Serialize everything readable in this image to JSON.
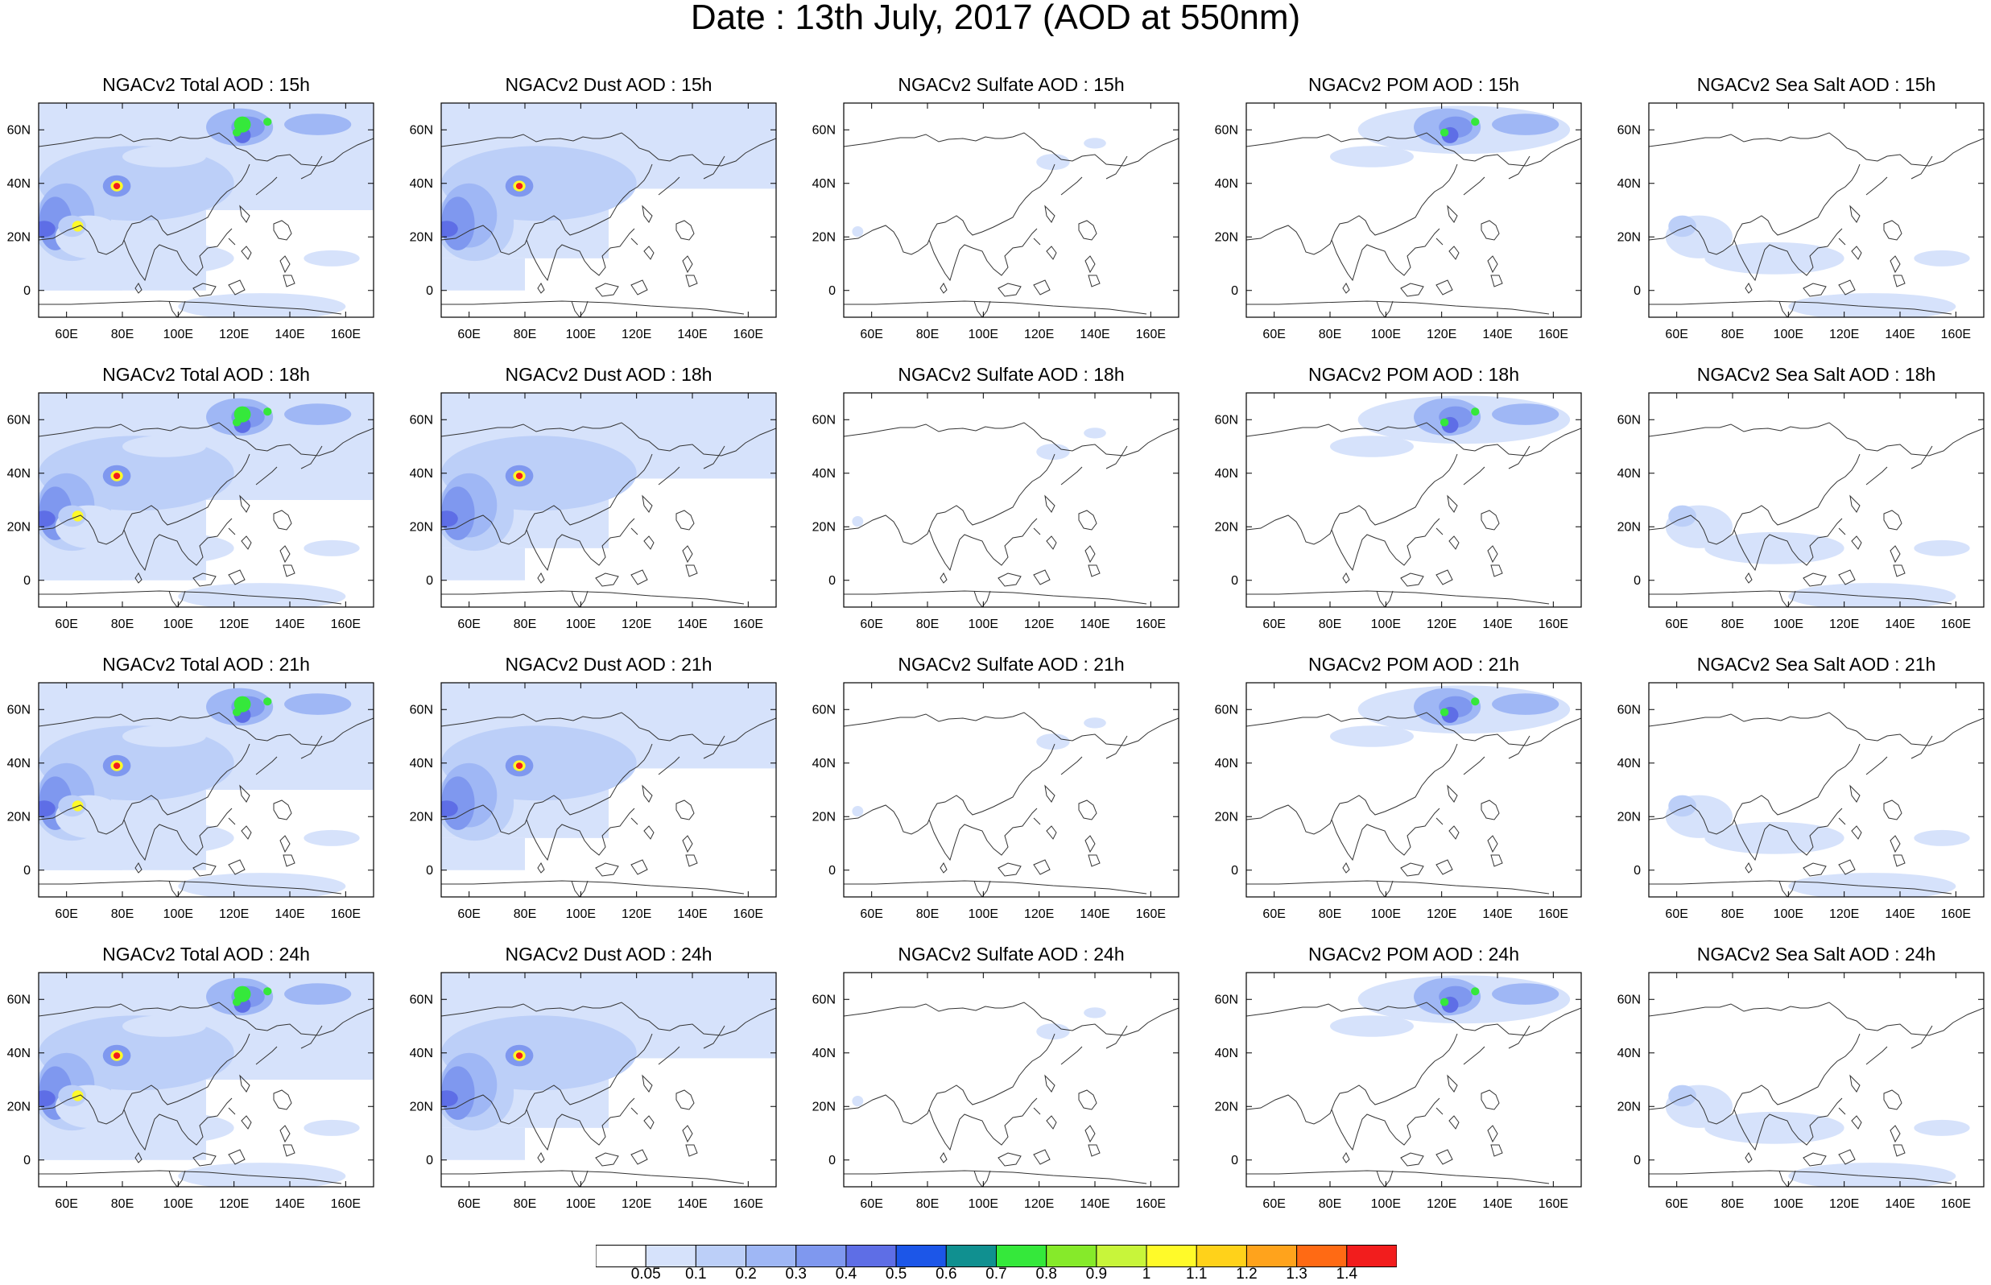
{
  "title": "Date : 13th July, 2017 (AOD at 550nm)",
  "axes": {
    "x_ticks": [
      "60E",
      "80E",
      "100E",
      "120E",
      "140E",
      "160E"
    ],
    "y_ticks": [
      "60N",
      "40N",
      "20N",
      "0"
    ],
    "lon_range": [
      50,
      170
    ],
    "lat_range": [
      -10,
      70
    ]
  },
  "panel_titles": [
    [
      "NGACv2 Total AOD : 15h",
      "NGACv2 Dust AOD : 15h",
      "NGACv2 Sulfate AOD : 15h",
      "NGACv2 POM AOD : 15h",
      "NGACv2 Sea Salt AOD : 15h"
    ],
    [
      "NGACv2 Total AOD : 18h",
      "NGACv2 Dust AOD : 18h",
      "NGACv2 Sulfate AOD : 18h",
      "NGACv2 POM AOD : 18h",
      "NGACv2 Sea Salt AOD : 18h"
    ],
    [
      "NGACv2 Total AOD : 21h",
      "NGACv2 Dust AOD : 21h",
      "NGACv2 Sulfate AOD : 21h",
      "NGACv2 POM AOD : 21h",
      "NGACv2 Sea Salt AOD : 21h"
    ],
    [
      "NGACv2 Total AOD : 24h",
      "NGACv2 Dust AOD : 24h",
      "NGACv2 Sulfate AOD : 24h",
      "NGACv2 POM AOD : 24h",
      "NGACv2 Sea Salt  AOD : 24h"
    ]
  ],
  "colorbar": {
    "labels": [
      "0.05",
      "0.1",
      "0.2",
      "0.3",
      "0.4",
      "0.5",
      "0.6",
      "0.7",
      "0.8",
      "0.9",
      "1",
      "1.1",
      "1.2",
      "1.3",
      "1.4"
    ],
    "colors": [
      "#ffffff",
      "#d6e2fb",
      "#bccff8",
      "#9fb7f5",
      "#7f98ef",
      "#5e6ee6",
      "#1c56e8",
      "#109090",
      "#35e83b",
      "#86ea2a",
      "#c8f53a",
      "#fffa29",
      "#ffd21a",
      "#ffa31c",
      "#ff6a14",
      "#f21d1d"
    ]
  },
  "field_colors": {
    "light": "#d6e2fb",
    "medium": "#bccff8",
    "medium2": "#9fb7f5",
    "strong": "#7f98ef",
    "deep": "#5e6ee6",
    "green": "#35e83b",
    "yellow": "#fffa29",
    "red": "#f21d1d",
    "coast": "#333333"
  }
}
